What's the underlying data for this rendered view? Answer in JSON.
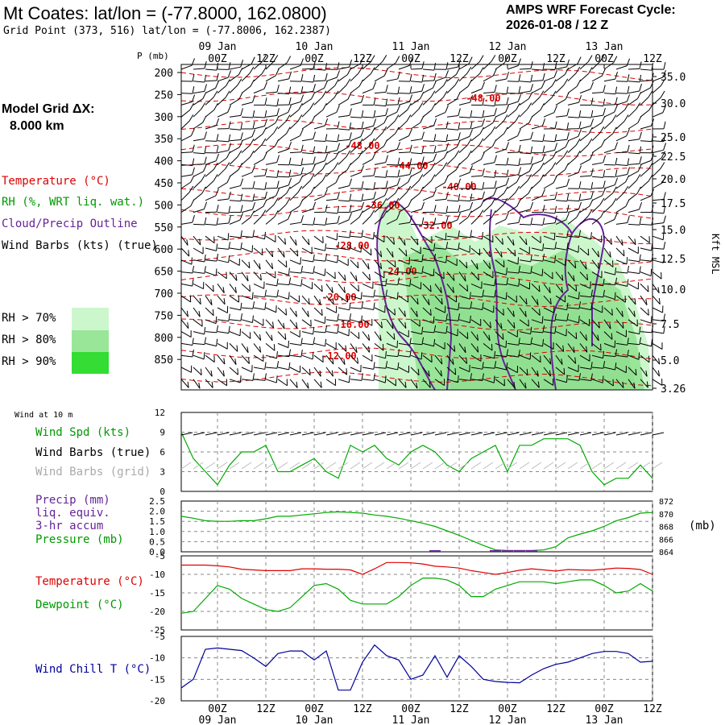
{
  "header": {
    "title": "Mt Coates:  lat/lon = (-77.8000, 162.0800)",
    "grid_point": "Grid Point (373, 516) lat/lon = (-77.8006, 162.2387)",
    "cycle_line1": "AMPS WRF Forecast Cycle:",
    "cycle_line2": "2026-01-08 / 12  Z"
  },
  "model_grid": {
    "label": "Model Grid ΔX:",
    "value": "8.000 km"
  },
  "legend": {
    "temperature": "Temperature (°C)",
    "rh": "RH (%, WRT liq. wat.)",
    "cloud": "Cloud/Precip Outline",
    "wind": "Wind Barbs (kts) (true)",
    "rh70": "RH > 70%",
    "rh80": "RH > 80%",
    "rh90": "RH > 90%"
  },
  "colors": {
    "temperature": "#dd0000",
    "rh_text": "#009900",
    "cloud": "#662299",
    "rh70": "#ccf7cc",
    "rh80": "#99e699",
    "rh90": "#33dd33",
    "wind_chill": "#000099",
    "grid": "#888888"
  },
  "time_axis": {
    "ticks": [
      "00Z",
      "12Z",
      "00Z",
      "12Z",
      "00Z",
      "12Z",
      "00Z",
      "12Z",
      "00Z",
      "12Z"
    ],
    "dates": [
      "09 Jan",
      "10 Jan",
      "11 Jan",
      "12 Jan",
      "13 Jan"
    ]
  },
  "pressure_axis": {
    "label": "P (mb)",
    "ticks": [
      "200",
      "250",
      "300",
      "350",
      "400",
      "450",
      "500",
      "550",
      "600",
      "650",
      "700",
      "750",
      "800",
      "850"
    ]
  },
  "height_axis": {
    "label": "Kft MSL",
    "ticks": [
      "35.0",
      "30.0",
      "25.0",
      "22.5",
      "20.0",
      "17.5",
      "15.0",
      "12.5",
      "10.0",
      "7.5",
      "5.0",
      "3.26"
    ]
  },
  "temp_labels": [
    "-48.00",
    "-48.00",
    "-44.00",
    "-40.00",
    "-36.00",
    "-32.00",
    "-28.00",
    "-24.00",
    "-20.00",
    "-16.00",
    "-12.00"
  ],
  "panel_wind": {
    "header": "Wind at 10 m",
    "spd": "Wind Spd (kts)",
    "barbs_true": "Wind Barbs (true)",
    "barbs_grid": "Wind Barbs (grid)",
    "yticks": [
      "12",
      "9",
      "6",
      "3",
      "0"
    ]
  },
  "panel_precip": {
    "precip": "Precip (mm)",
    "liq": "liq. equiv.",
    "accum": "3-hr accum",
    "pressure": "Pressure (mb)",
    "left_ticks": [
      "2.5",
      "2.0",
      "1.5",
      "1.0",
      "0.5",
      "0.0"
    ],
    "right_ticks": [
      "872",
      "870",
      "868",
      "866",
      "864"
    ],
    "unit": "(mb)"
  },
  "panel_temp": {
    "temperature": "Temperature (°C)",
    "dewpoint": "Dewpoint (°C)",
    "yticks": [
      "-5",
      "-10",
      "-15",
      "-20",
      "-25"
    ]
  },
  "panel_chill": {
    "label": "Wind Chill T (°C)",
    "yticks": [
      "-5",
      "-10",
      "-15",
      "-20"
    ]
  },
  "chart_data": [
    {
      "type": "line",
      "x": [
        0,
        1,
        2,
        3,
        4,
        5,
        6,
        7,
        8,
        9,
        10,
        11,
        12,
        13,
        14,
        15,
        16,
        17,
        18,
        19,
        20,
        21,
        22,
        23,
        24,
        25,
        26,
        27,
        28,
        29,
        30,
        31,
        32,
        33,
        34,
        35,
        36,
        37,
        38,
        39
      ],
      "series": [
        {
          "name": "Wind Spd (kts)",
          "values": [
            9,
            5,
            3,
            1,
            4,
            6,
            6,
            7,
            3,
            3,
            4,
            5,
            3,
            2,
            7,
            6,
            7,
            5,
            4,
            6,
            7,
            6,
            4,
            3,
            5,
            6,
            7,
            3,
            7,
            7,
            8,
            8,
            8,
            7,
            3,
            1,
            2,
            2,
            4,
            2
          ]
        }
      ],
      "ylim": [
        0,
        12
      ]
    },
    {
      "type": "line",
      "x": [
        0,
        1,
        2,
        3,
        4,
        5,
        6,
        7,
        8,
        9,
        10,
        11,
        12,
        13,
        14,
        15,
        16,
        17,
        18,
        19,
        20,
        21,
        22,
        23,
        24,
        25,
        26,
        27,
        28,
        29,
        30,
        31,
        32,
        33,
        34,
        35,
        36,
        37,
        38,
        39
      ],
      "series": [
        {
          "name": "Pressure (mb)",
          "values": [
            869.6,
            869.3,
            868.9,
            868.8,
            868.8,
            868.9,
            868.9,
            869.2,
            869.6,
            869.6,
            869.8,
            870.0,
            870.2,
            870.3,
            870.2,
            870.1,
            869.8,
            869.6,
            869.3,
            868.9,
            868.5,
            868.0,
            867.3,
            866.6,
            865.8,
            865.0,
            864.3,
            864.2,
            864.2,
            864.2,
            864.3,
            864.8,
            866.2,
            866.8,
            867.3,
            868.0,
            868.9,
            869.4,
            870.1,
            870.2
          ]
        }
      ],
      "precip": [
        0,
        0,
        0,
        0,
        0,
        0,
        0,
        0,
        0,
        0,
        0,
        0,
        0,
        0,
        0,
        0,
        0,
        0,
        0,
        0,
        0,
        0.02,
        0,
        0,
        0,
        0,
        0.02,
        0.02,
        0.02,
        0.02,
        0,
        0,
        0,
        0,
        0,
        0,
        0,
        0,
        0,
        0
      ],
      "ylim": [
        864,
        872
      ]
    },
    {
      "type": "line",
      "x": [
        0,
        1,
        2,
        3,
        4,
        5,
        6,
        7,
        8,
        9,
        10,
        11,
        12,
        13,
        14,
        15,
        16,
        17,
        18,
        19,
        20,
        21,
        22,
        23,
        24,
        25,
        26,
        27,
        28,
        29,
        30,
        31,
        32,
        33,
        34,
        35,
        36,
        37,
        38,
        39
      ],
      "series": [
        {
          "name": "Temperature (°C)",
          "values": [
            -7.5,
            -7.5,
            -7.5,
            -7.7,
            -8,
            -8.6,
            -8.8,
            -9,
            -9,
            -9,
            -8.5,
            -8.5,
            -8.6,
            -8.6,
            -8.8,
            -10,
            -8.5,
            -6.8,
            -6.8,
            -6.9,
            -7.2,
            -7.8,
            -8,
            -8.3,
            -9,
            -9.5,
            -10,
            -9.5,
            -8.9,
            -8.5,
            -8.8,
            -9.1,
            -8.7,
            -8.8,
            -8.9,
            -8.6,
            -8.3,
            -8.4,
            -8.7,
            -10
          ]
        },
        {
          "name": "Dewpoint (°C)",
          "values": [
            -20.5,
            -20,
            -16.5,
            -13,
            -14,
            -16.5,
            -18,
            -19.5,
            -20,
            -19,
            -16,
            -13,
            -12.5,
            -14,
            -17,
            -18,
            -18,
            -18,
            -16,
            -13,
            -11,
            -11,
            -11.5,
            -13,
            -16,
            -16,
            -14,
            -13,
            -12,
            -12,
            -12,
            -12.5,
            -12,
            -11.5,
            -11.5,
            -13,
            -15,
            -14.5,
            -12.5,
            -14.5
          ]
        }
      ],
      "ylim": [
        -25,
        -5
      ]
    },
    {
      "type": "line",
      "x": [
        0,
        1,
        2,
        3,
        4,
        5,
        6,
        7,
        8,
        9,
        10,
        11,
        12,
        13,
        14,
        15,
        16,
        17,
        18,
        19,
        20,
        21,
        22,
        23,
        24,
        25,
        26,
        27,
        28,
        29,
        30,
        31,
        32,
        33,
        34,
        35,
        36,
        37,
        38,
        39
      ],
      "series": [
        {
          "name": "Wind Chill T (°C)",
          "values": [
            -17,
            -15,
            -8,
            -7.7,
            -8,
            -8.3,
            -10,
            -12,
            -9,
            -8.4,
            -8.4,
            -10.5,
            -8.4,
            -17.5,
            -17.5,
            -11,
            -7,
            -9.5,
            -10.5,
            -15,
            -14,
            -9.5,
            -14.5,
            -9.5,
            -12,
            -15,
            -15.5,
            -15.7,
            -15.8,
            -14,
            -12.5,
            -11.5,
            -11,
            -10,
            -9,
            -8.5,
            -8.5,
            -9,
            -11,
            -10.8
          ]
        }
      ],
      "ylim": [
        -20,
        -5
      ]
    }
  ]
}
